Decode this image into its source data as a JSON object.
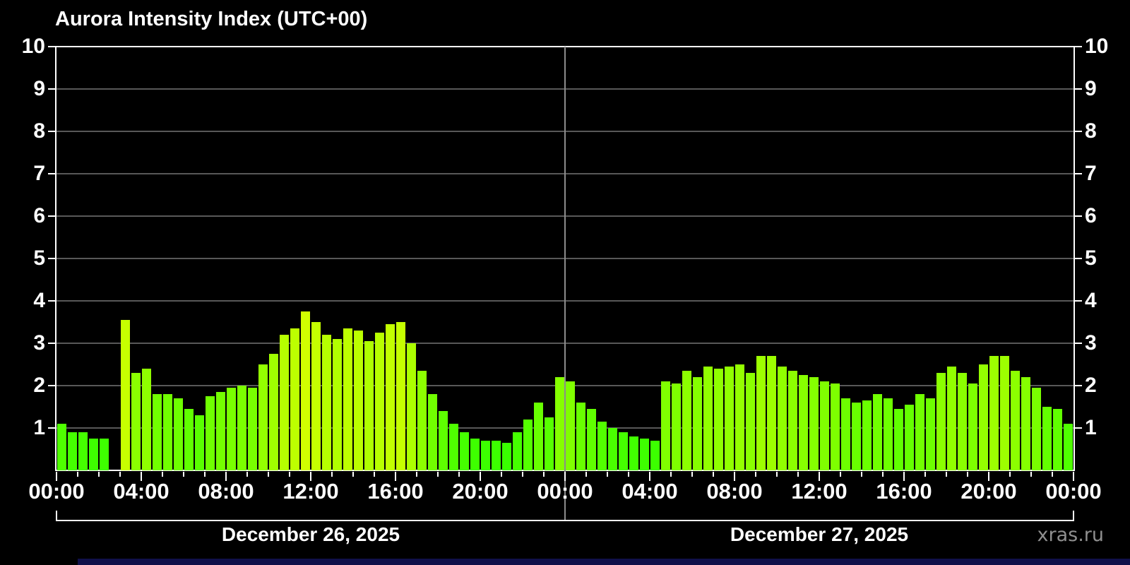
{
  "title": "Aurora Intensity Index (UTC+00)",
  "watermark": "xras.ru",
  "day_labels": [
    "December 26, 2025",
    "December 27, 2025"
  ],
  "colors": {
    "background": "#000000",
    "axis": "#ffffff",
    "gridline": "#585858",
    "day_divider": "#8c8c8c",
    "tick": "#ffffff",
    "text": "#ffffff",
    "watermark": "#8f8f8f",
    "bottom_strip": "#10104a"
  },
  "y_axis": {
    "min": 0,
    "max": 10,
    "tick_labels": [
      "1",
      "2",
      "3",
      "4",
      "5",
      "6",
      "7",
      "8",
      "9",
      "10"
    ]
  },
  "x_axis": {
    "hour_tick_interval": 1,
    "label_interval_hours": 4,
    "labels": [
      "00:00",
      "04:00",
      "08:00",
      "12:00",
      "16:00",
      "20:00",
      "00:00",
      "04:00",
      "08:00",
      "12:00",
      "16:00",
      "20:00",
      "00:00"
    ]
  },
  "chart_data": {
    "type": "bar",
    "title": "Aurora Intensity Index (UTC+00)",
    "timezone": "UTC+00",
    "start": "December 26, 2025 00:00",
    "end": "December 28, 2025 00:00",
    "interval_minutes": 30,
    "ylim": [
      0,
      10
    ],
    "grid": true,
    "values": [
      1.1,
      0.9,
      0.9,
      0.75,
      0.75,
      0,
      3.55,
      2.3,
      2.4,
      1.8,
      1.8,
      1.7,
      1.45,
      1.3,
      1.75,
      1.85,
      1.95,
      2.0,
      1.95,
      2.5,
      2.75,
      3.2,
      3.35,
      3.75,
      3.5,
      3.2,
      3.1,
      3.35,
      3.3,
      3.05,
      3.25,
      3.45,
      3.5,
      3.0,
      2.35,
      1.8,
      1.4,
      1.1,
      0.9,
      0.75,
      0.7,
      0.7,
      0.65,
      0.9,
      1.2,
      1.6,
      1.25,
      2.2,
      2.1,
      1.6,
      1.45,
      1.15,
      1.0,
      0.9,
      0.8,
      0.75,
      0.7,
      2.1,
      2.05,
      2.35,
      2.2,
      2.45,
      2.4,
      2.45,
      2.5,
      2.3,
      2.7,
      2.7,
      2.45,
      2.35,
      2.25,
      2.2,
      2.1,
      2.05,
      1.7,
      1.6,
      1.65,
      1.8,
      1.7,
      1.45,
      1.55,
      1.8,
      1.7,
      2.3,
      2.45,
      2.3,
      2.05,
      2.5,
      2.7,
      2.7,
      2.35,
      2.2,
      1.95,
      1.5,
      1.45,
      1.1
    ],
    "colormap": {
      "type": "hsl",
      "hue_at_zero": 114,
      "hue_slope_per_unit": -11.5,
      "hue_min": 60,
      "saturation": "100%",
      "lightness": "50%"
    }
  }
}
